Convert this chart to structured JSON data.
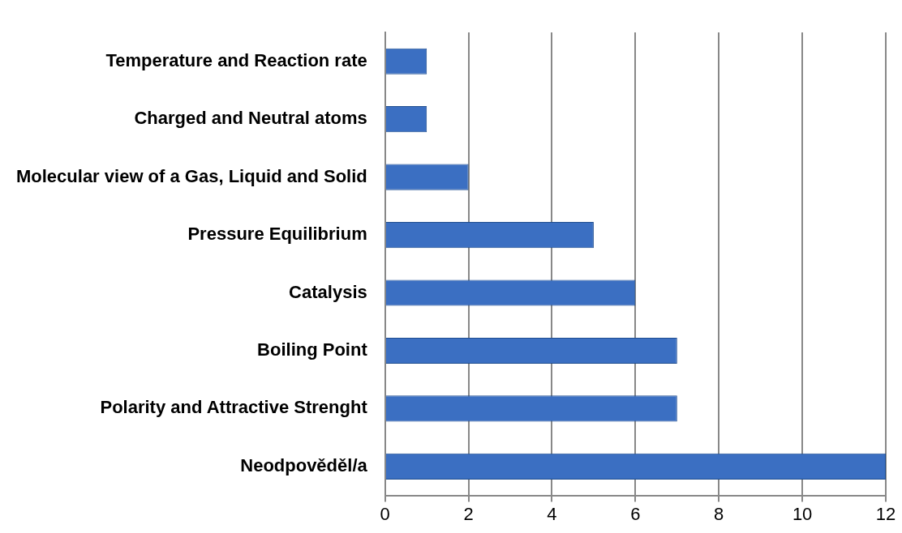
{
  "chart_data": {
    "type": "bar",
    "orientation": "horizontal",
    "categories": [
      "Temperature and Reaction rate",
      "Charged and Neutral atoms",
      "Molecular view of a Gas, Liquid and Solid",
      "Pressure Equilibrium",
      "Catalysis",
      "Boiling Point",
      "Polarity and Attractive Strenght",
      "Neodpověděl/a"
    ],
    "values": [
      1,
      1,
      2,
      5,
      6,
      7,
      7,
      12
    ],
    "color": "#3b6fc2",
    "xlim": [
      0,
      12
    ],
    "xticks": [
      0,
      2,
      4,
      6,
      8,
      10,
      12
    ],
    "grid": "x",
    "legend": false
  }
}
